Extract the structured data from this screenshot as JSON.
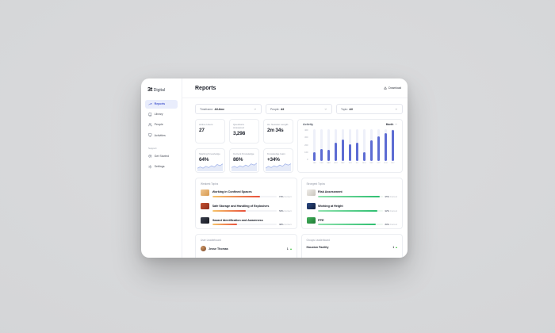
{
  "app": {
    "logo_bold": "3t",
    "logo_light": "Digital"
  },
  "sidebar": {
    "items": [
      {
        "label": "Reports"
      },
      {
        "label": "Library"
      },
      {
        "label": "People"
      },
      {
        "label": "Activities"
      }
    ],
    "support_heading": "Support",
    "support_items": [
      {
        "label": "Get Started"
      },
      {
        "label": "Settings"
      }
    ]
  },
  "header": {
    "title": "Reports",
    "download_label": "Download"
  },
  "filters": [
    {
      "label": "Timeframe:",
      "value": "All-time"
    },
    {
      "label": "People:",
      "value": "All"
    },
    {
      "label": "Topic:",
      "value": "All"
    }
  ],
  "stats": [
    {
      "label": "Active Users",
      "value": "27"
    },
    {
      "label": "Questions Answered",
      "value": "3,298"
    },
    {
      "label": "Av. Session Length",
      "value": "2m 34s"
    },
    {
      "label": "Starting Knowledge",
      "value": "64%",
      "spark": [
        5,
        7,
        5,
        8,
        6,
        9,
        7,
        11,
        9,
        12
      ]
    },
    {
      "label": "Current Knowledge",
      "value": "86%",
      "spark": [
        6,
        8,
        6,
        9,
        7,
        10,
        8,
        12,
        10,
        13
      ]
    },
    {
      "label": "Knowledge Gain",
      "value": "+34%",
      "spark": [
        5,
        8,
        6,
        9,
        7,
        10,
        8,
        12,
        10,
        12
      ]
    }
  ],
  "chart_data": {
    "type": "bar",
    "title": "Activity",
    "period_selector": "Month",
    "categories": [
      "JAN",
      "FEB",
      "MAR",
      "APR",
      "MAY",
      "JUN",
      "JUL",
      "AUG",
      "SEP",
      "OCT",
      "NOV",
      "DEC"
    ],
    "values": [
      110,
      150,
      140,
      230,
      270,
      210,
      230,
      110,
      260,
      310,
      350,
      390
    ],
    "ylim": [
      0,
      400
    ],
    "yticks": [
      400,
      300,
      200,
      100,
      0
    ],
    "bar_color": "#5d6cd3",
    "track_color": "#eef0f9",
    "grid": false,
    "legend_position": "none"
  },
  "weakest_topics": {
    "title": "Weakest Topics",
    "correct_label": "Correct",
    "bar_from": "#f6c46a",
    "bar_to": "#e8513c",
    "track": "#f2f3f6",
    "items": [
      {
        "name": "Working in Confined Spaces",
        "pct": 74,
        "pct_label": "74%",
        "thumb_from": "#efc793",
        "thumb_to": "#d89a4e"
      },
      {
        "name": "Safe Storage and Handling of Explosives",
        "pct": 52,
        "pct_label": "52%",
        "thumb_from": "#c4502f",
        "thumb_to": "#8e2f1f"
      },
      {
        "name": "Hazard Identification and Awareness",
        "pct": 38,
        "pct_label": "38%",
        "thumb_from": "#3a3f4e",
        "thumb_to": "#171a22"
      }
    ]
  },
  "strongest_topics": {
    "title": "Strongest Topics",
    "correct_label": "Correct",
    "bar_from": "#8fe2ae",
    "bar_to": "#2fbf71",
    "track": "#eef7f1",
    "items": [
      {
        "name": "Risk Assessment",
        "pct": 95,
        "pct_label": "95%",
        "thumb_from": "#efede9",
        "thumb_to": "#c9c5bd"
      },
      {
        "name": "Working at Height",
        "pct": 92,
        "pct_label": "92%",
        "thumb_from": "#2c4a86",
        "thumb_to": "#101e3c"
      },
      {
        "name": "PPE",
        "pct": 89,
        "pct_label": "89%",
        "thumb_from": "#45b05c",
        "thumb_to": "#1d7d35"
      }
    ]
  },
  "user_leaderboard": {
    "title": "User Leaderboard",
    "rows": [
      {
        "name": "Jesse Thomas",
        "rank": "1",
        "trend": "up"
      }
    ]
  },
  "groups_leaderboard": {
    "title": "Groups Leaderboard",
    "rows": [
      {
        "name": "Houston Facility",
        "rank": "1",
        "trend": "up"
      }
    ]
  },
  "colors": {
    "accent": "#5d6cd3",
    "positive": "#3cc13b",
    "negative": "#e8513c",
    "nav_active_bg": "#e9edfc"
  }
}
